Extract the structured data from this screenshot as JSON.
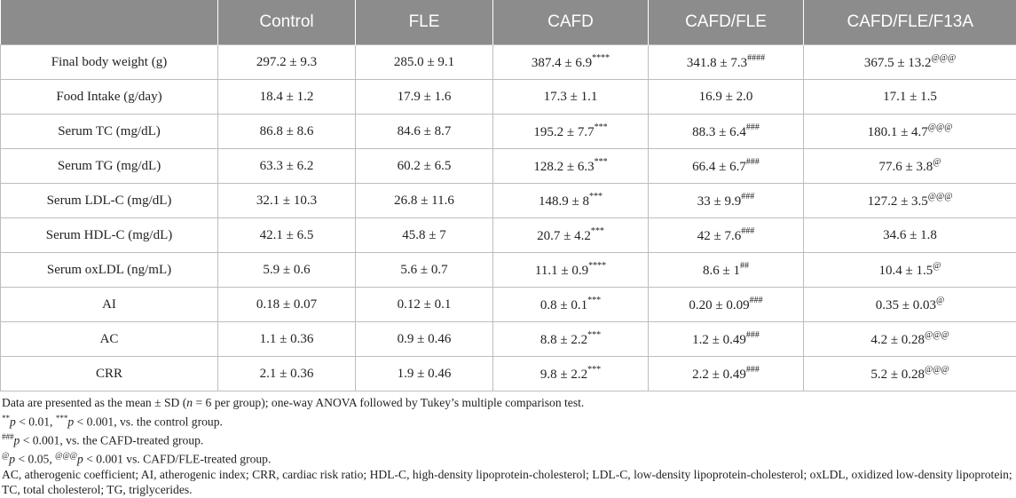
{
  "table": {
    "columns": [
      "",
      "Control",
      "FLE",
      "CAFD",
      "CAFD/FLE",
      "CAFD/FLE/F13A"
    ],
    "rows": [
      {
        "label": "Final body weight (g)",
        "cells": [
          {
            "v": "297.2 ± 9.3",
            "s": ""
          },
          {
            "v": "285.0 ± 9.1",
            "s": ""
          },
          {
            "v": "387.4 ± 6.9",
            "s": "****"
          },
          {
            "v": "341.8 ± 7.3",
            "s": "####"
          },
          {
            "v": "367.5 ± 13.2",
            "s": "@@@"
          }
        ]
      },
      {
        "label": "Food Intake (g/day)",
        "cells": [
          {
            "v": "18.4 ± 1.2",
            "s": ""
          },
          {
            "v": "17.9 ± 1.6",
            "s": ""
          },
          {
            "v": "17.3 ± 1.1",
            "s": ""
          },
          {
            "v": "16.9 ± 2.0",
            "s": ""
          },
          {
            "v": "17.1 ± 1.5",
            "s": ""
          }
        ]
      },
      {
        "label": "Serum TC (mg/dL)",
        "cells": [
          {
            "v": "86.8 ± 8.6",
            "s": ""
          },
          {
            "v": "84.6 ± 8.7",
            "s": ""
          },
          {
            "v": "195.2 ± 7.7",
            "s": "***"
          },
          {
            "v": "88.3 ± 6.4",
            "s": "###"
          },
          {
            "v": "180.1 ± 4.7",
            "s": "@@@"
          }
        ]
      },
      {
        "label": "Serum TG (mg/dL)",
        "cells": [
          {
            "v": "63.3 ± 6.2",
            "s": ""
          },
          {
            "v": "60.2 ± 6.5",
            "s": ""
          },
          {
            "v": "128.2 ± 6.3",
            "s": "***"
          },
          {
            "v": "66.4 ± 6.7",
            "s": "###"
          },
          {
            "v": "77.6 ± 3.8",
            "s": "@"
          }
        ]
      },
      {
        "label": "Serum LDL-C (mg/dL)",
        "cells": [
          {
            "v": "32.1 ± 10.3",
            "s": ""
          },
          {
            "v": "26.8 ± 11.6",
            "s": ""
          },
          {
            "v": "148.9 ± 8",
            "s": "***"
          },
          {
            "v": "33 ± 9.9",
            "s": "###"
          },
          {
            "v": "127.2 ± 3.5",
            "s": "@@@"
          }
        ]
      },
      {
        "label": "Serum HDL-C (mg/dL)",
        "cells": [
          {
            "v": "42.1 ± 6.5",
            "s": ""
          },
          {
            "v": "45.8 ± 7",
            "s": ""
          },
          {
            "v": "20.7 ± 4.2",
            "s": "***"
          },
          {
            "v": "42 ± 7.6",
            "s": "###"
          },
          {
            "v": "34.6 ± 1.8",
            "s": ""
          }
        ]
      },
      {
        "label": "Serum oxLDL (ng/mL)",
        "cells": [
          {
            "v": "5.9 ± 0.6",
            "s": ""
          },
          {
            "v": "5.6 ± 0.7",
            "s": ""
          },
          {
            "v": "11.1 ± 0.9",
            "s": "****"
          },
          {
            "v": "8.6 ± 1",
            "s": "##"
          },
          {
            "v": "10.4 ± 1.5",
            "s": "@"
          }
        ]
      },
      {
        "label": "AI",
        "cells": [
          {
            "v": "0.18 ± 0.07",
            "s": ""
          },
          {
            "v": "0.12 ± 0.1",
            "s": ""
          },
          {
            "v": "0.8 ± 0.1",
            "s": "***"
          },
          {
            "v": "0.20 ± 0.09",
            "s": "###"
          },
          {
            "v": "0.35 ± 0.03",
            "s": "@"
          }
        ]
      },
      {
        "label": "AC",
        "cells": [
          {
            "v": "1.1 ± 0.36",
            "s": ""
          },
          {
            "v": "0.9 ± 0.46",
            "s": ""
          },
          {
            "v": "8.8 ± 2.2",
            "s": "***"
          },
          {
            "v": "1.2 ± 0.49",
            "s": "###"
          },
          {
            "v": "4.2 ± 0.28",
            "s": "@@@"
          }
        ]
      },
      {
        "label": "CRR",
        "cells": [
          {
            "v": "2.1 ± 0.36",
            "s": ""
          },
          {
            "v": "1.9 ± 0.46",
            "s": ""
          },
          {
            "v": "9.8 ± 2.2",
            "s": "***"
          },
          {
            "v": "2.2 ± 0.49",
            "s": "###"
          },
          {
            "v": "5.2 ± 0.28",
            "s": "@@@"
          }
        ]
      }
    ]
  },
  "footnotes": {
    "data_prefix": "Data are presented as the mean ± SD (",
    "n_italic": "n",
    "data_suffix": " = 6 per group); one-way ANOVA followed by Tukey’s multiple comparison test.",
    "ctrl": {
      "sup1": "**",
      "p1": "p",
      "t1": " < 0.01, ",
      "sup2": "***",
      "p2": "p",
      "t2": " < 0.001, vs. the control group."
    },
    "cafd": {
      "sup1": "###",
      "p1": "p",
      "t1": " < 0.001, vs. the CAFD-treated group."
    },
    "fle": {
      "sup1": "@",
      "p1": "p",
      "t1": " < 0.05, ",
      "sup2": "@@@",
      "p2": "p",
      "t2": " < 0.001 vs. CAFD/FLE-treated group."
    },
    "abbrev": "AC, atherogenic coefficient; AI, atherogenic index; CRR, cardiac risk ratio; HDL-C, high-density lipoprotein-cholesterol; LDL-C, low-density lipoprotein-cholesterol; oxLDL, oxidized low-density lipoprotein; TC, total cholesterol; TG, triglycerides."
  }
}
